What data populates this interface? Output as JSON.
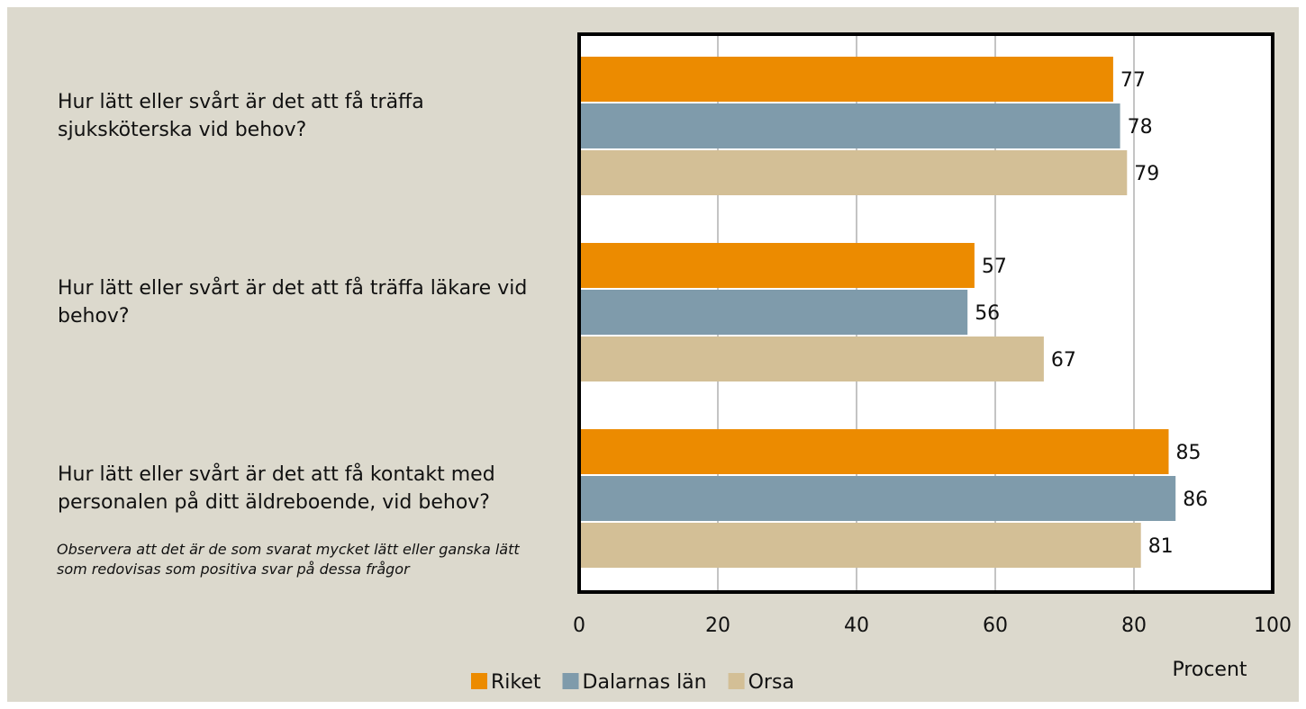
{
  "chart_data": {
    "type": "bar",
    "orientation": "horizontal",
    "categories": [
      "Hur lätt eller svårt är det att få träffa sjuksköterska vid behov?",
      "Hur lätt eller svårt är det att få träffa läkare vid behov?",
      "Hur lätt eller svårt är det att få kontakt med personalen på ditt äldreboende, vid behov?"
    ],
    "series": [
      {
        "name": "Riket",
        "color": "#ec8b00",
        "values": [
          77,
          57,
          85
        ]
      },
      {
        "name": "Dalarnas län",
        "color": "#7f9bab",
        "values": [
          78,
          56,
          86
        ]
      },
      {
        "name": "Orsa",
        "color": "#d3bf96",
        "values": [
          79,
          67,
          81
        ]
      }
    ],
    "xlim": [
      0,
      100
    ],
    "xticks": [
      0,
      20,
      40,
      60,
      80,
      100
    ],
    "x_label": "Procent",
    "note": "Observera att det är de som svarat mycket lätt eller ganska lätt som redovisas som positiva svar på dessa frågor",
    "grid": true,
    "legend": "bottom"
  }
}
